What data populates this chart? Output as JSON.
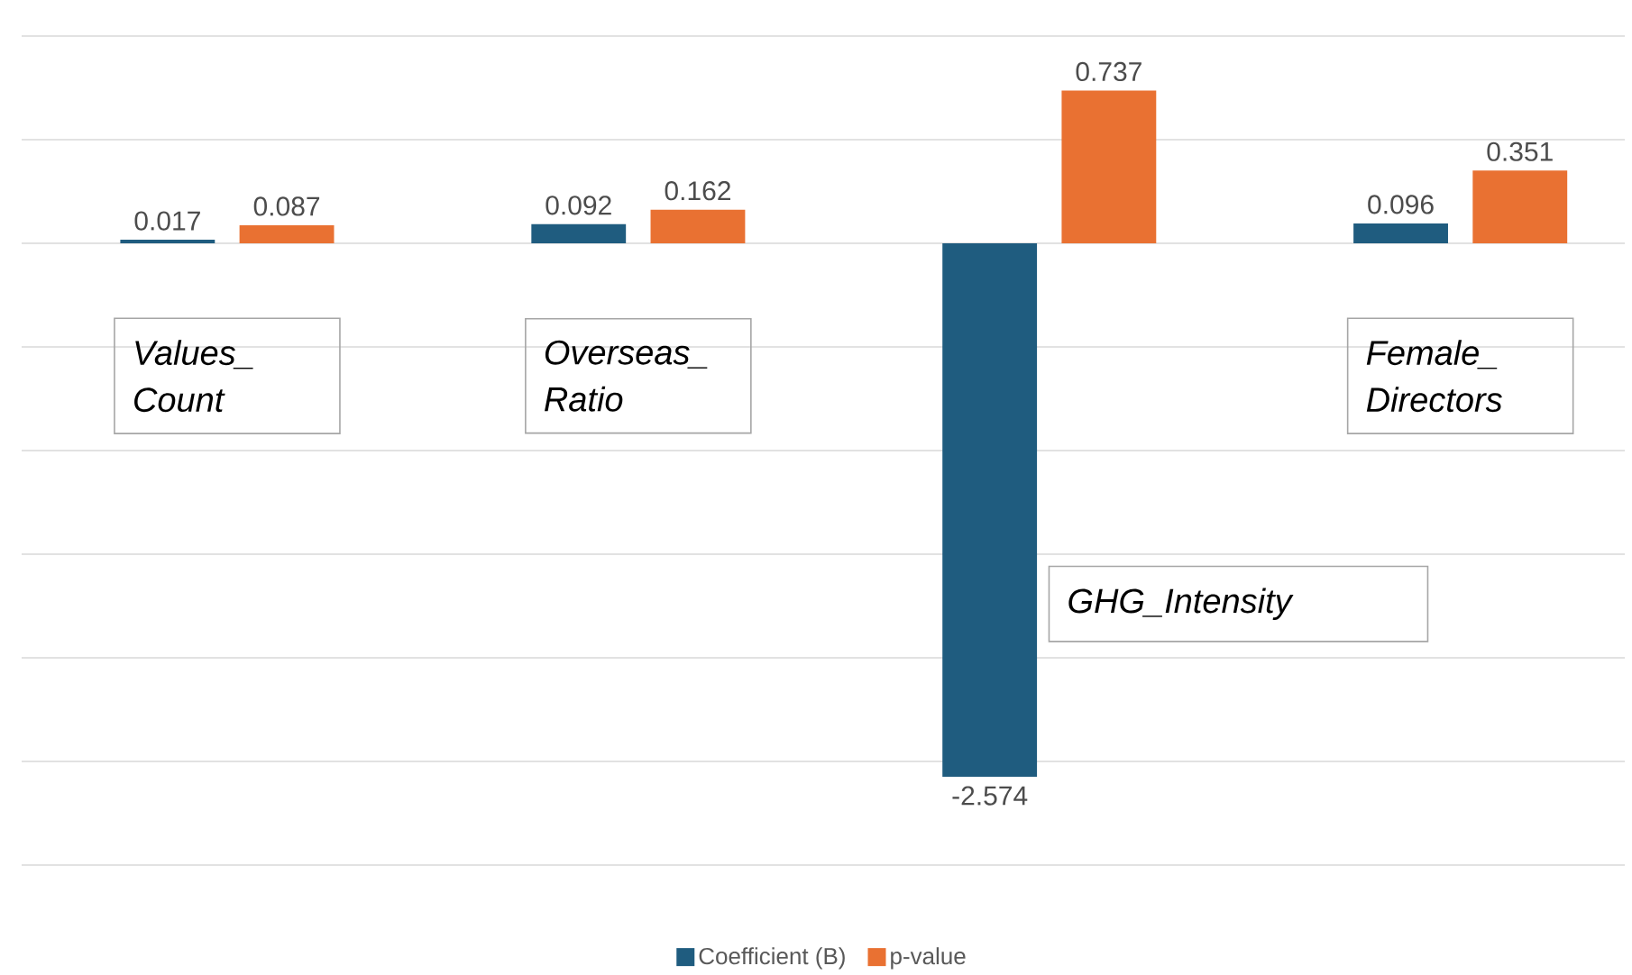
{
  "chart_data": {
    "type": "bar",
    "categories": [
      "Values_Count",
      "Overseas_Ratio",
      "GHG_Intensity",
      "Female_Directors"
    ],
    "series": [
      {
        "name": "Coefficient (B)",
        "color": "#1f5c7f",
        "values": [
          0.017,
          0.092,
          -2.574,
          0.096
        ]
      },
      {
        "name": "p-value",
        "color": "#e97132",
        "values": [
          0.087,
          0.162,
          0.737,
          0.351
        ]
      }
    ],
    "ylim": [
      -3,
      1
    ],
    "yticks": [
      {
        "value": -3,
        "label": null
      },
      {
        "value": -2.5,
        "label": null
      },
      {
        "value": -2,
        "label": null
      },
      {
        "value": -1.5,
        "label": null
      },
      {
        "value": -1,
        "label": null
      },
      {
        "value": -0.5,
        "label": null
      },
      {
        "value": 0,
        "label": null
      },
      {
        "value": 0.5,
        "label": null
      },
      {
        "value": 1,
        "label": null
      }
    ],
    "grid": "y",
    "legend": "bottom",
    "data_labels": true
  }
}
